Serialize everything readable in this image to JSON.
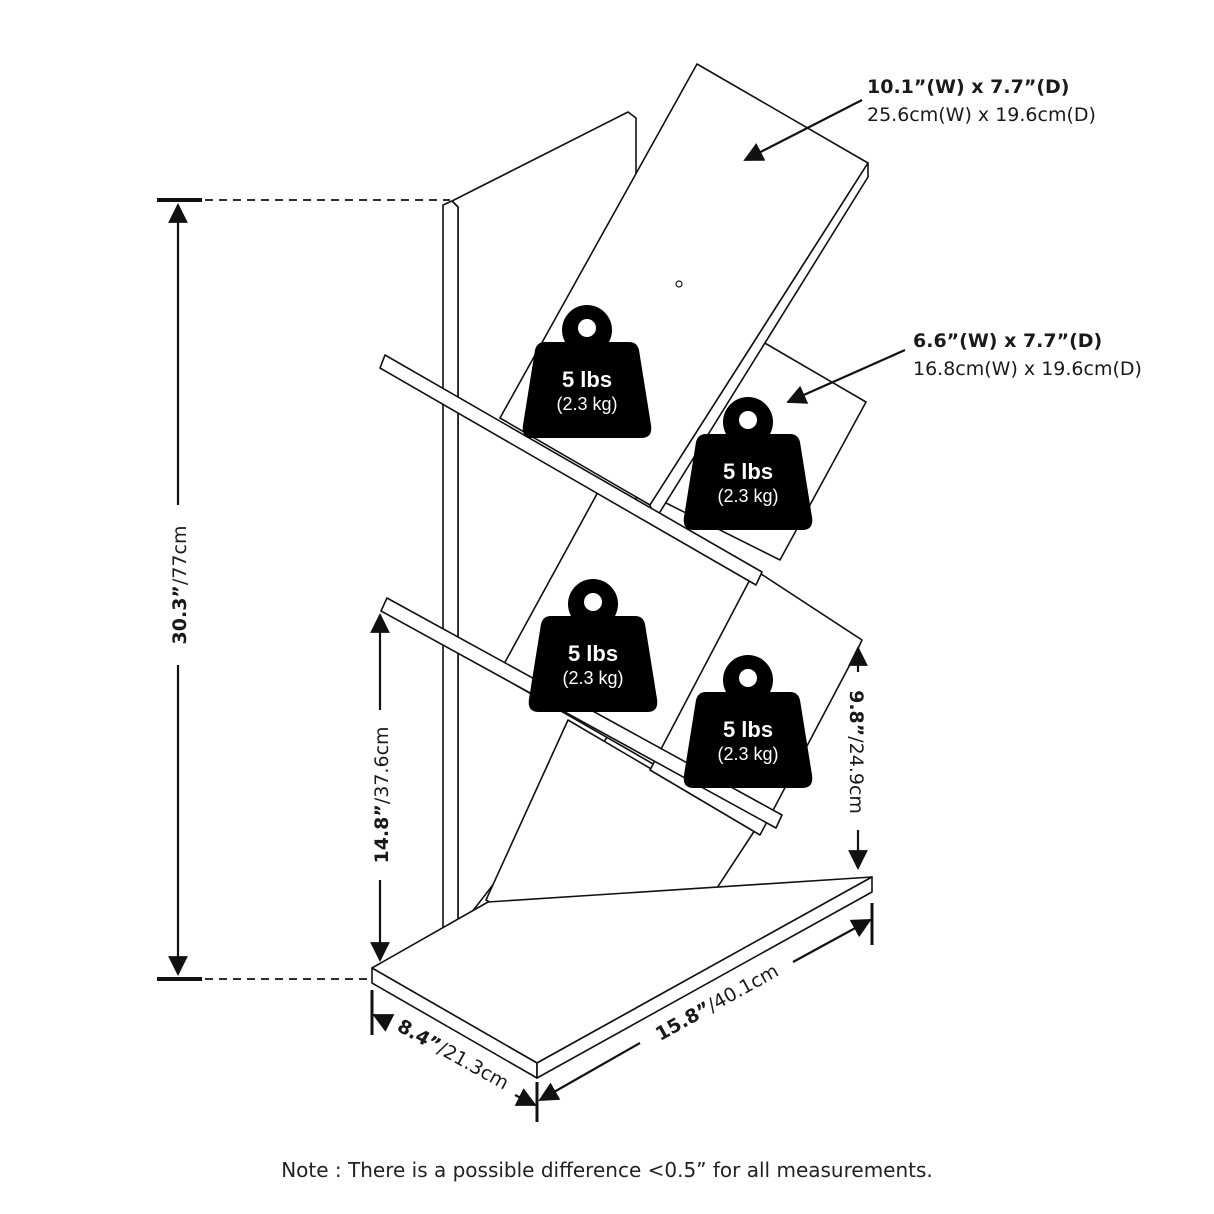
{
  "top_shelf": {
    "imperial": "10.1”(W)  x 7.7”(D)",
    "metric": "25.6cm(W) x 19.6cm(D)"
  },
  "middle_shelf": {
    "imperial": "6.6”(W)  x 7.7”(D)",
    "metric": "16.8cm(W) x 19.6cm(D)"
  },
  "weights": [
    {
      "label": "5 lbs",
      "sub": "(2.3 kg)"
    },
    {
      "label": "5 lbs",
      "sub": "(2.3 kg)"
    },
    {
      "label": "5 lbs",
      "sub": "(2.3 kg)"
    },
    {
      "label": "5 lbs",
      "sub": "(2.3 kg)"
    }
  ],
  "dimensions": {
    "total_height": {
      "imperial": "30.3”",
      "metric": "/77cm"
    },
    "lower_height": {
      "imperial": "14.8”",
      "metric": "/37.6cm"
    },
    "shelf_gap": {
      "imperial": "9.8”",
      "metric": "/24.9cm"
    },
    "depth": {
      "imperial": "8.4”",
      "metric": "/21.3cm"
    },
    "width": {
      "imperial": "15.8”",
      "metric": "/40.1cm"
    }
  },
  "note": "Note : There is a possible difference <0.5” for all measurements.",
  "colors": {
    "line": "#111111",
    "weight_fill": "#000000",
    "background": "#ffffff"
  }
}
